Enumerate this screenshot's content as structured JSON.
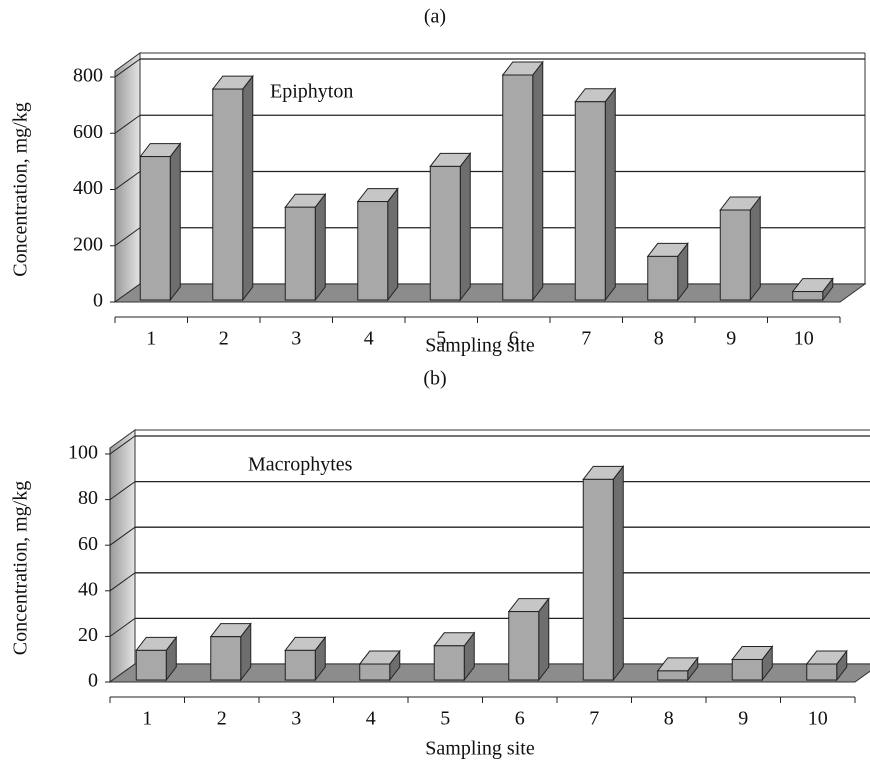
{
  "chart_data": [
    {
      "type": "bar3d",
      "title": "(a)",
      "annotation": "Epiphyton",
      "x_label": "Sampling site",
      "y_label": "Concentration, mg/kg",
      "categories": [
        "1",
        "2",
        "3",
        "4",
        "5",
        "6",
        "7",
        "8",
        "9",
        "10"
      ],
      "values": [
        510,
        750,
        330,
        350,
        475,
        800,
        705,
        155,
        320,
        30
      ],
      "color": "#a8a8a8",
      "ylim": [
        0,
        800
      ],
      "yticks": [
        0,
        200,
        400,
        600,
        800
      ],
      "grid": true
    },
    {
      "type": "bar3d",
      "title": "(b)",
      "annotation": "Macrophytes",
      "x_label": "Sampling site",
      "y_label": "Concentration, mg/kg",
      "categories": [
        "1",
        "2",
        "3",
        "4",
        "5",
        "6",
        "7",
        "8",
        "9",
        "10"
      ],
      "values": [
        13,
        19,
        13,
        7,
        15,
        30,
        88,
        4,
        9,
        7
      ],
      "color": "#a8a8a8",
      "ylim": [
        0,
        100
      ],
      "yticks": [
        0,
        20,
        40,
        60,
        80,
        100
      ],
      "grid": true
    }
  ]
}
